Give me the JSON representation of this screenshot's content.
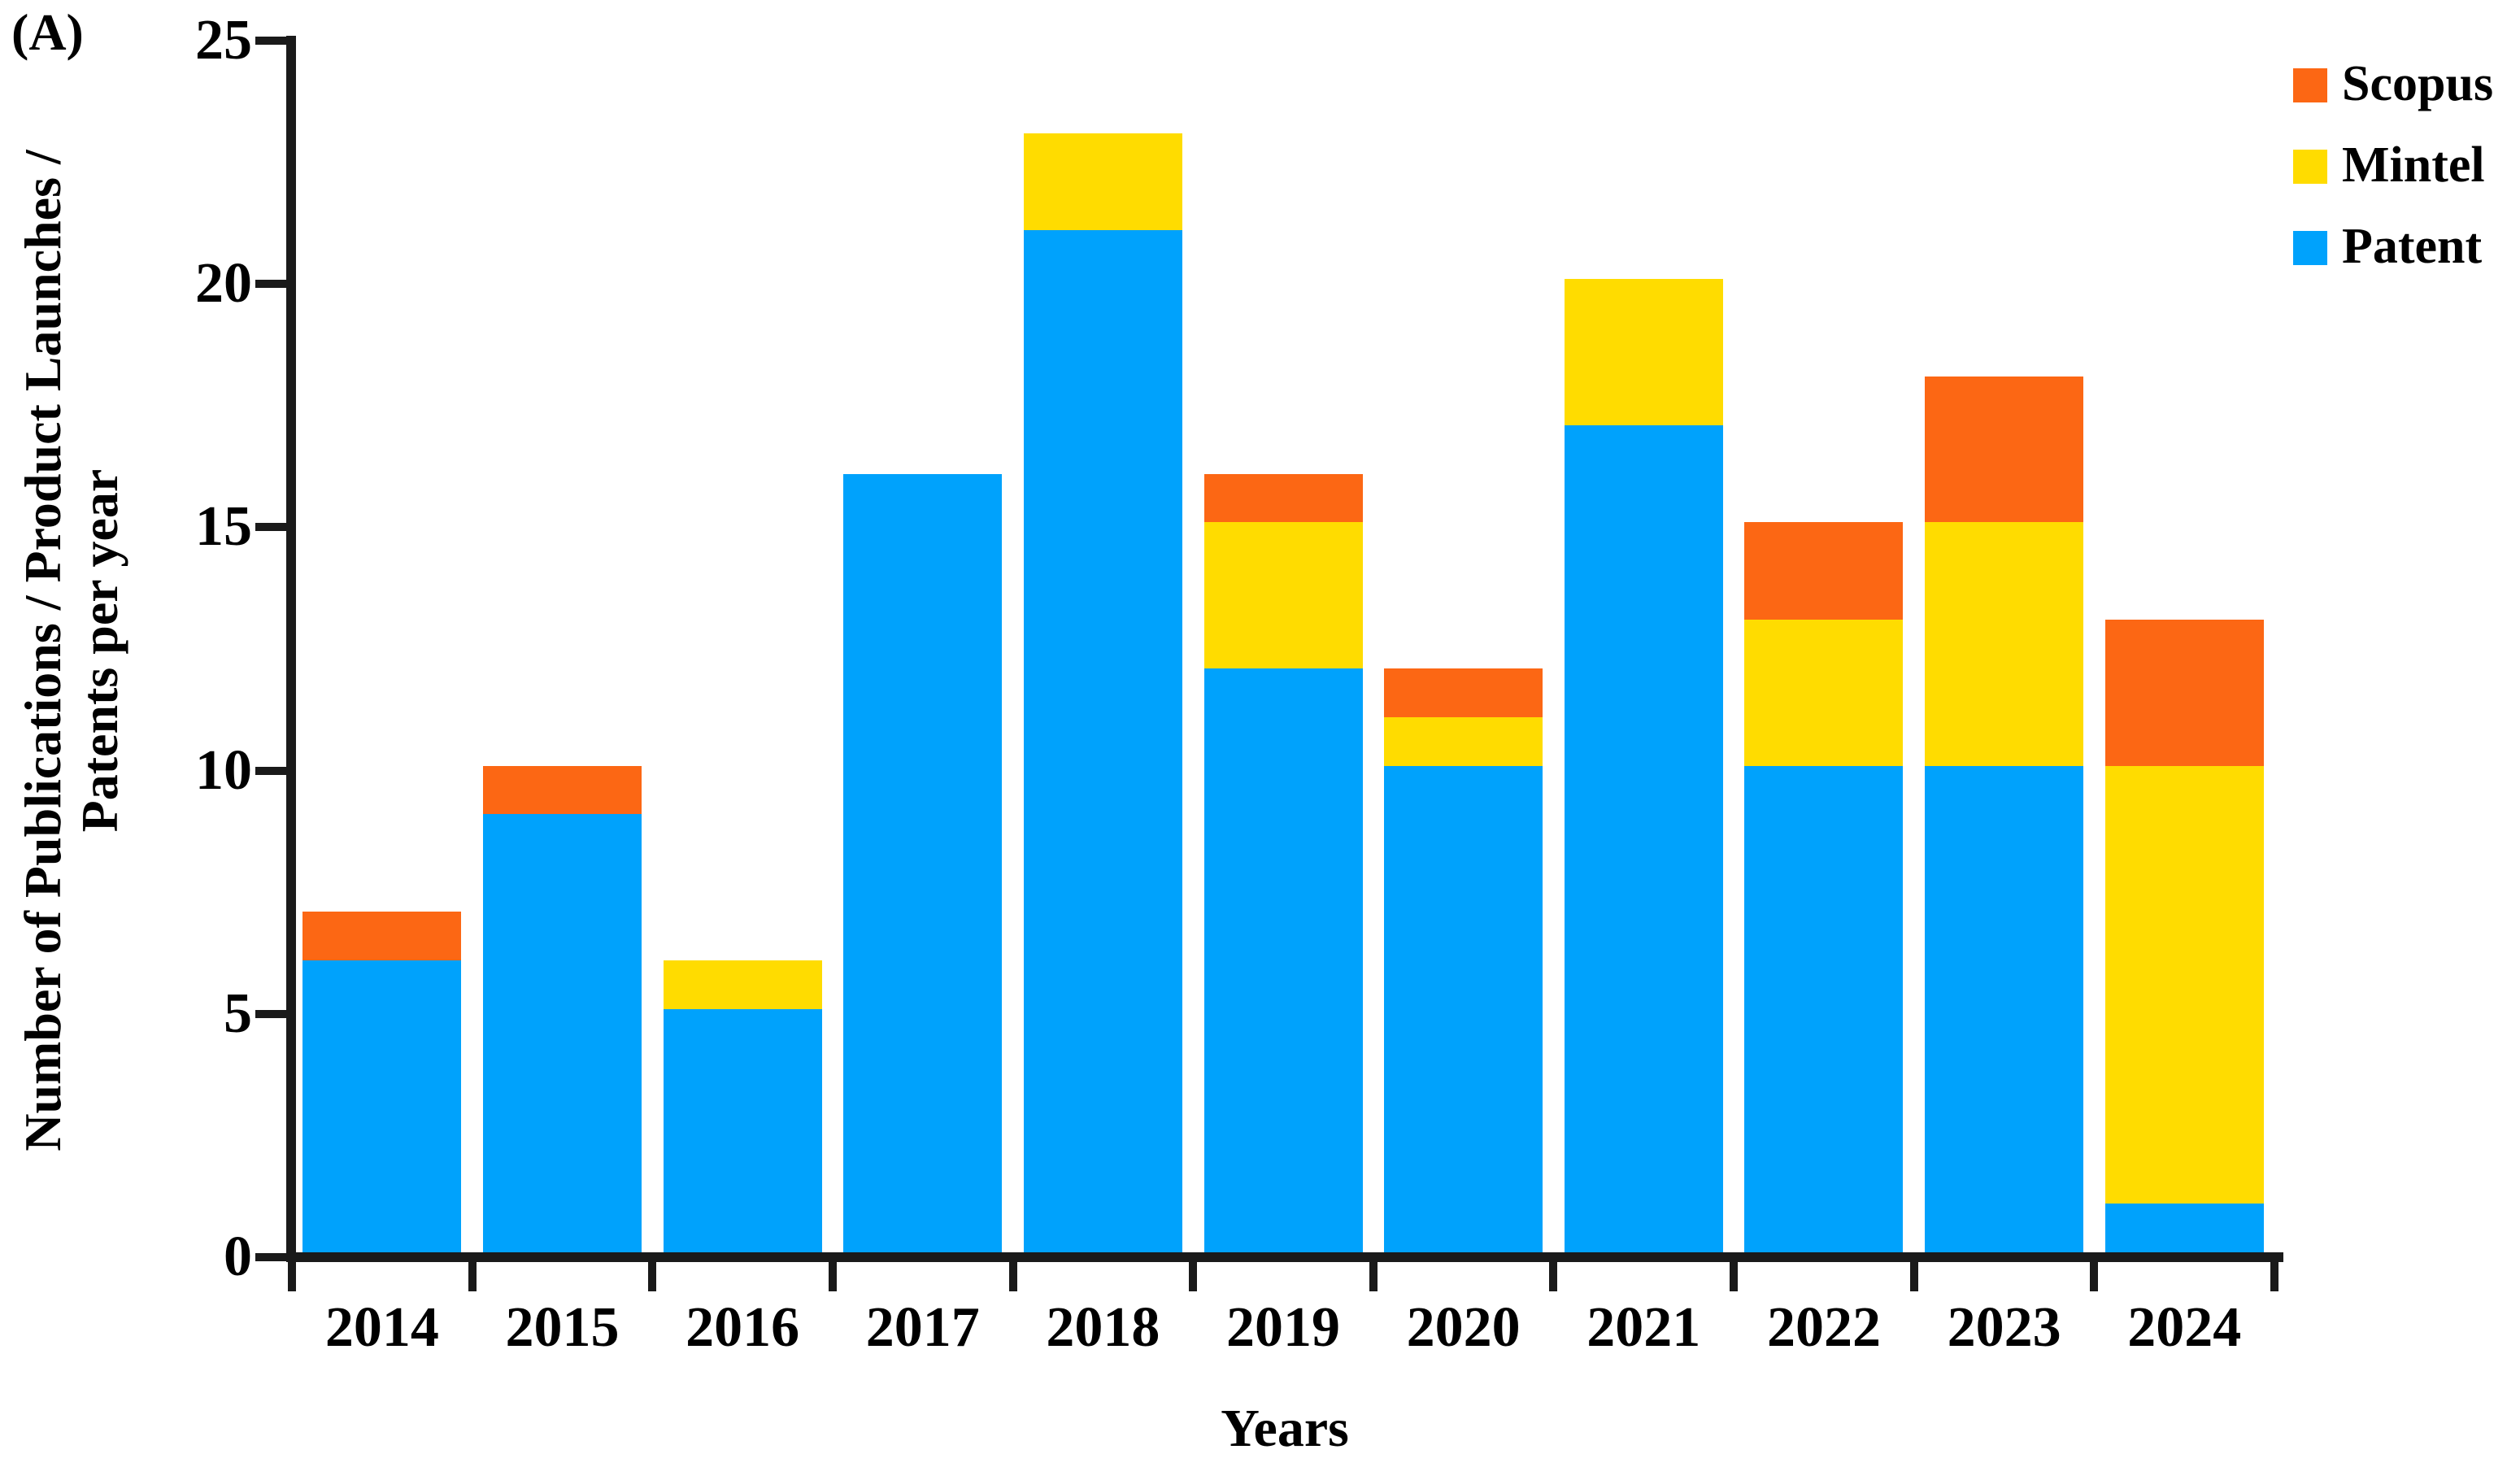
{
  "panel_label": "(A)",
  "axes": {
    "y_title_line1": "Number of Publications / Product Launches /",
    "y_title_line2": "Patents per year",
    "x_title": "Years",
    "y_tick_labels": [
      "0",
      "5",
      "10",
      "15",
      "20",
      "25"
    ],
    "y_tick_values": [
      0,
      5,
      10,
      15,
      20,
      25
    ]
  },
  "legend": [
    {
      "label": "Scopus",
      "color": "#FC6714"
    },
    {
      "label": "Mintel",
      "color": "#FFDC00"
    },
    {
      "label": "Patent",
      "color": "#00A2FC"
    }
  ],
  "chart_data": {
    "type": "bar",
    "stacked": true,
    "title": "",
    "xlabel": "Years",
    "ylabel": "Number of Publications / Product Launches / Patents per year",
    "ylim": [
      0,
      25
    ],
    "ytick_step": 5,
    "grid": false,
    "legend_position": "top-right",
    "categories": [
      "2014",
      "2015",
      "2016",
      "2017",
      "2018",
      "2019",
      "2020",
      "2021",
      "2022",
      "2023",
      "2024"
    ],
    "series": [
      {
        "name": "Patent",
        "color": "#00A2FC",
        "values": [
          6,
          9,
          5,
          16,
          21,
          12,
          10,
          17,
          10,
          10,
          1
        ]
      },
      {
        "name": "Mintel",
        "color": "#FFDC00",
        "values": [
          0,
          0,
          1,
          0,
          2,
          3,
          1,
          3,
          3,
          5,
          9
        ]
      },
      {
        "name": "Scopus",
        "color": "#FC6714",
        "values": [
          1,
          1,
          0,
          0,
          0,
          1,
          1,
          0,
          2,
          3,
          3
        ]
      }
    ],
    "stack_order_bottom_to_top": [
      "Patent",
      "Mintel",
      "Scopus"
    ],
    "totals": [
      7,
      10,
      6,
      16,
      23,
      16,
      12,
      20,
      15,
      18,
      13
    ]
  }
}
